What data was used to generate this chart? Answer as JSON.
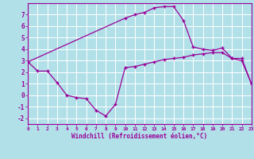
{
  "xlabel": "Windchill (Refroidissement éolien,°C)",
  "background_color": "#b2e0e8",
  "grid_color": "#ffffff",
  "line_color": "#990099",
  "x_min": 0,
  "x_max": 23,
  "y_min": -2.5,
  "y_max": 8.0,
  "x_ticks": [
    0,
    1,
    2,
    3,
    4,
    5,
    6,
    7,
    8,
    9,
    10,
    11,
    12,
    13,
    14,
    15,
    16,
    17,
    18,
    19,
    20,
    21,
    22,
    23
  ],
  "y_ticks": [
    -2,
    -1,
    0,
    1,
    2,
    3,
    4,
    5,
    6,
    7
  ],
  "series1_x": [
    0,
    1,
    2,
    3,
    4,
    5,
    6,
    7,
    8,
    9,
    10,
    11,
    12,
    13,
    14,
    15,
    16,
    17,
    18,
    19,
    20,
    21,
    22,
    23
  ],
  "series1_y": [
    2.9,
    2.1,
    2.1,
    1.1,
    0.0,
    -0.2,
    -0.3,
    -1.3,
    -1.8,
    -0.8,
    2.4,
    2.5,
    2.7,
    2.9,
    3.1,
    3.2,
    3.3,
    3.5,
    3.6,
    3.7,
    3.7,
    3.2,
    3.0,
    1.0
  ],
  "series2_x": [
    0,
    10,
    11,
    12,
    13,
    14,
    15,
    16,
    17,
    18,
    19,
    20,
    21,
    22,
    23
  ],
  "series2_y": [
    2.9,
    6.7,
    7.0,
    7.2,
    7.6,
    7.7,
    7.7,
    6.5,
    4.2,
    4.0,
    3.9,
    4.1,
    3.2,
    3.2,
    1.0
  ]
}
